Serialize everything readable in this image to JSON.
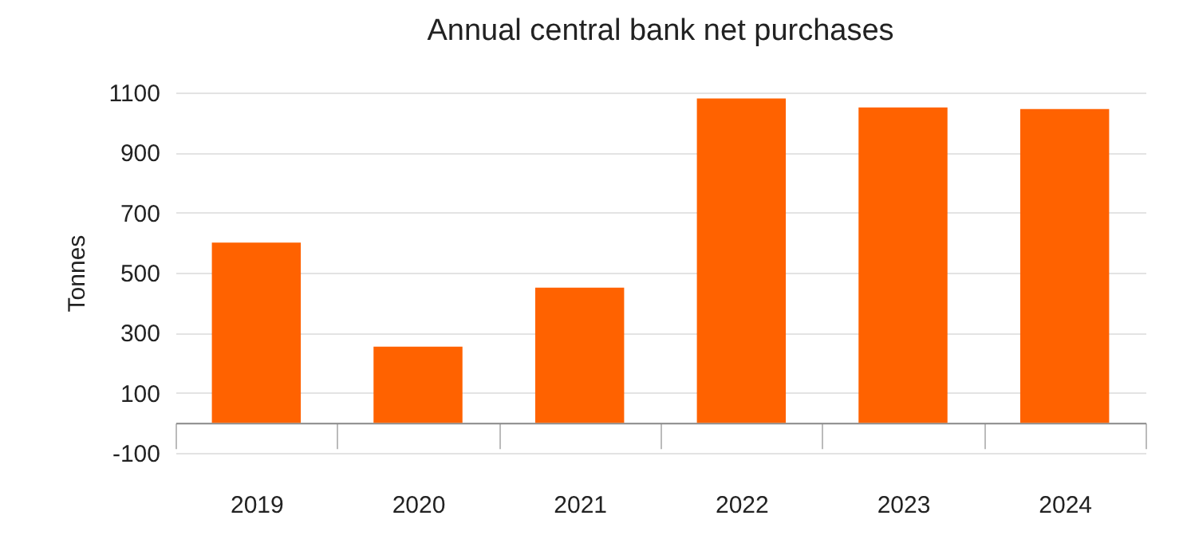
{
  "chart_data": {
    "type": "bar",
    "title": "Annual central bank net purchases",
    "ylabel": "Tonnes",
    "categories": [
      "2019",
      "2020",
      "2021",
      "2022",
      "2023",
      "2024"
    ],
    "values": [
      600,
      254,
      450,
      1080,
      1050,
      1045
    ],
    "color": "#ff6200",
    "ylim": [
      -100,
      1100
    ],
    "yticks": [
      -100,
      100,
      300,
      500,
      700,
      900,
      1100
    ],
    "grid": "y"
  }
}
